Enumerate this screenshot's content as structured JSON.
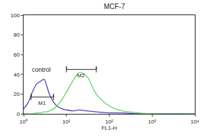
{
  "chart_data": {
    "type": "line",
    "title": "MCF-7",
    "x_label": "FL1-H",
    "log": "x",
    "x": [
      1,
      1.3,
      1.6,
      2,
      2.5,
      3,
      3.5,
      4,
      5,
      6,
      8,
      10,
      15,
      20,
      30,
      50,
      100,
      200,
      500,
      1000,
      10000
    ],
    "series": [
      {
        "color": "#4b3fb5",
        "values": [
          5,
          12,
          22,
          30,
          33,
          35,
          28,
          20,
          12,
          8,
          5,
          4,
          3,
          4,
          3,
          2,
          1,
          1,
          0,
          0,
          0
        ]
      },
      {
        "color": "#5fd35f",
        "values": [
          0,
          0,
          0,
          1,
          1,
          2,
          2,
          3,
          5,
          8,
          15,
          22,
          35,
          42,
          38,
          20,
          8,
          3,
          1,
          0,
          0
        ]
      }
    ],
    "xlim": [
      1,
      10000
    ],
    "xticks": [
      {
        "value": 1,
        "label": "10⁰"
      },
      {
        "value": 10,
        "label": "10¹"
      },
      {
        "value": 100,
        "label": "10²"
      },
      {
        "value": 1000,
        "label": "10³"
      },
      {
        "value": 10000,
        "label": "10⁴"
      }
    ],
    "ylim": [
      0,
      100
    ],
    "yticks": [
      0,
      20,
      40,
      60,
      80,
      100
    ],
    "grid": false,
    "annotations": [
      {
        "text": "control",
        "x": 2.6,
        "y": 45
      }
    ],
    "gates": [
      {
        "label": "M1",
        "x": [
          1.5,
          5
        ],
        "y": 17
      },
      {
        "label": "M2",
        "x": [
          10,
          50
        ],
        "y": 45
      }
    ]
  }
}
